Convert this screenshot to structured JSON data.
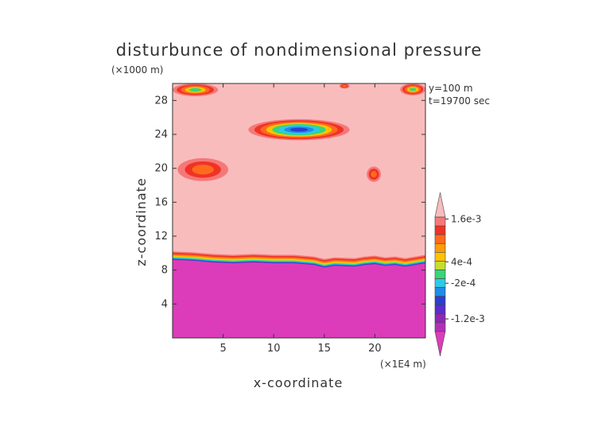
{
  "chart_data": {
    "type": "heatmap",
    "title": "disturbunce of nondimensional pressure",
    "xlabel": "x-coordinate",
    "ylabel": "z-coordinate",
    "x_unit": "(×1E4 m)",
    "y_unit": "(×1000 m)",
    "annotations": [
      "y=100 m",
      "t=19700 sec"
    ],
    "xlim": [
      0,
      25
    ],
    "ylim": [
      0,
      30
    ],
    "x_ticks": [
      5,
      10,
      15,
      20
    ],
    "y_ticks": [
      4,
      8,
      12,
      16,
      20,
      24,
      28
    ],
    "x_tick_labels": [
      "5",
      "10",
      "15",
      "20"
    ],
    "y_tick_labels": [
      "4",
      "8",
      "12",
      "16",
      "20",
      "24",
      "28"
    ],
    "colorbar": {
      "labels": [
        {
          "text": "1.6e-3",
          "level": 0.0016
        },
        {
          "text": "4e-4",
          "level": 0.0004
        },
        {
          "text": "-2e-4",
          "level": -0.0002
        },
        {
          "text": "-1.2e-3",
          "level": -0.0012
        }
      ],
      "range": [
        -0.0018,
        0.0019
      ]
    },
    "fields": {
      "upper_background_value": 0.0019,
      "lower_layer_value": -0.0018,
      "interface_height_profile": [
        [
          0,
          9.2
        ],
        [
          2,
          9.1
        ],
        [
          4,
          8.9
        ],
        [
          6,
          8.8
        ],
        [
          8,
          8.9
        ],
        [
          10,
          8.8
        ],
        [
          12,
          8.8
        ],
        [
          14,
          8.6
        ],
        [
          15,
          8.3
        ],
        [
          16,
          8.5
        ],
        [
          18,
          8.4
        ],
        [
          19,
          8.6
        ],
        [
          20,
          8.7
        ],
        [
          21,
          8.5
        ],
        [
          22,
          8.6
        ],
        [
          23,
          8.4
        ],
        [
          24,
          8.6
        ],
        [
          25,
          8.8
        ]
      ],
      "anomalies": [
        {
          "x": [
            7.5,
            17.5
          ],
          "z": [
            23.3,
            25.8
          ],
          "min_value": -0.0012
        },
        {
          "x": [
            0.5,
            5.5
          ],
          "z": [
            18.5,
            21.2
          ],
          "min_value": 0.0012
        },
        {
          "x": [
            19.2,
            20.6
          ],
          "z": [
            18.4,
            20.2
          ],
          "min_value": 0.0012
        },
        {
          "x": [
            0,
            4.5
          ],
          "z": [
            28.5,
            30
          ],
          "min_value": -0.0009
        },
        {
          "x": [
            16.5,
            17.5
          ],
          "z": [
            29.4,
            30
          ],
          "min_value": 0.001
        },
        {
          "x": [
            22.5,
            25
          ],
          "z": [
            28.6,
            30
          ],
          "min_value": -0.0006
        }
      ]
    },
    "colors": {
      "background": "#f9bcbc",
      "lower_layer": "#dc3cb9",
      "bands": [
        "#8c28b4",
        "#2b3ed2",
        "#1f8ce6",
        "#2ec9e8",
        "#37d678",
        "#c6dc32",
        "#ffc300",
        "#ff9a0a",
        "#ff6a1e",
        "#f03226",
        "#f57878",
        "#f9bcbc"
      ]
    }
  }
}
